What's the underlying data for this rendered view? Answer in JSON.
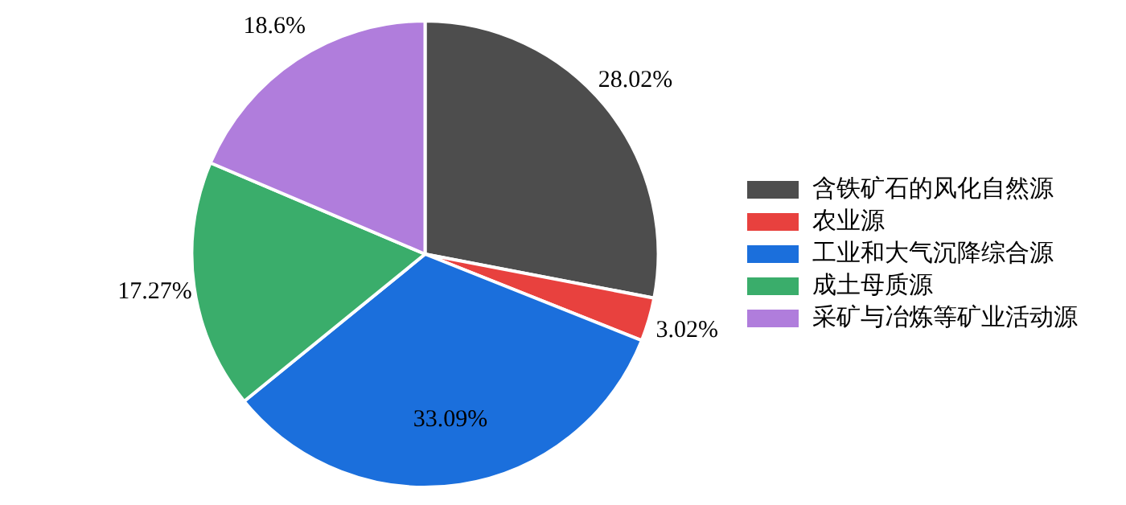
{
  "chart_data": {
    "type": "pie",
    "categories": [
      "含铁矿石的风化自然源",
      "农业源",
      "工业和大气沉降综合源",
      "成土母质源",
      "采矿与冶炼等矿业活动源"
    ],
    "values": [
      28.02,
      3.02,
      33.09,
      17.27,
      18.6
    ],
    "colors": [
      "#4d4d4d",
      "#e8413e",
      "#1b6fdc",
      "#3aad6b",
      "#b07ddc"
    ],
    "value_labels": [
      "28.02%",
      "3.02%",
      "33.09%",
      "17.27%",
      "18.6%"
    ],
    "legend": "right"
  }
}
